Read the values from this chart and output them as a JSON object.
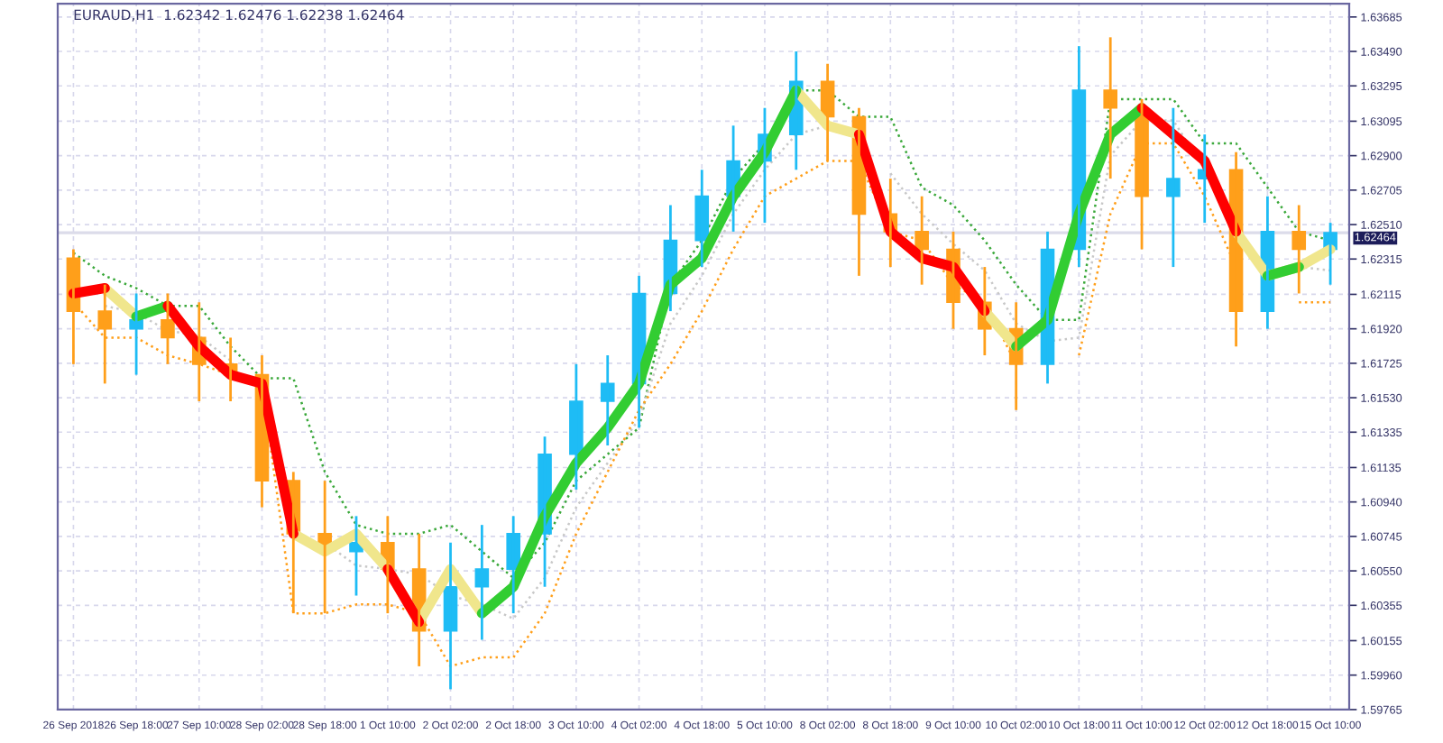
{
  "chart_data": {
    "type": "candlestick",
    "title": "EURAUD,H1  1.62342 1.62476 1.62238 1.62464",
    "categories": [
      "26 Sep 2018",
      null,
      "26 Sep 18:00",
      null,
      "27 Sep 10:00",
      null,
      "28 Sep 02:00",
      null,
      "28 Sep 18:00",
      null,
      "1 Oct 10:00",
      null,
      "2 Oct 02:00",
      null,
      "2 Oct 18:00",
      null,
      "3 Oct 10:00",
      null,
      "4 Oct 02:00",
      null,
      "4 Oct 18:00",
      null,
      "5 Oct 10:00",
      null,
      "8 Oct 02:00",
      null,
      "8 Oct 18:00",
      null,
      "9 Oct 10:00",
      null,
      "10 Oct 02:00",
      null,
      "10 Oct 18:00",
      null,
      "11 Oct 10:00",
      null,
      "12 Oct 02:00",
      null,
      "12 Oct 18:00",
      null,
      "15 Oct 10:00"
    ],
    "ohlc": [
      [
        1.6232,
        1.6237,
        1.6172,
        1.6202
      ],
      [
        1.6202,
        1.6217,
        1.6161,
        1.6192
      ],
      [
        1.6192,
        1.6212,
        1.6166,
        1.6197
      ],
      [
        1.6197,
        1.6212,
        1.6172,
        1.6187
      ],
      [
        1.6187,
        1.6207,
        1.6151,
        1.6172
      ],
      [
        1.6172,
        1.6187,
        1.6151,
        1.6166
      ],
      [
        1.6166,
        1.6177,
        1.6091,
        1.6106
      ],
      [
        1.6106,
        1.6111,
        1.6031,
        1.6076
      ],
      [
        1.6076,
        1.6106,
        1.6031,
        1.6066
      ],
      [
        1.6066,
        1.6086,
        1.6041,
        1.6071
      ],
      [
        1.6071,
        1.6086,
        1.6031,
        1.6056
      ],
      [
        1.6056,
        1.6076,
        1.6001,
        1.6021
      ],
      [
        1.6021,
        1.6071,
        1.5988,
        1.6046
      ],
      [
        1.6046,
        1.6081,
        1.6016,
        1.6056
      ],
      [
        1.6056,
        1.6086,
        1.6031,
        1.6076
      ],
      [
        1.6076,
        1.6131,
        1.6046,
        1.6121
      ],
      [
        1.6121,
        1.6172,
        1.6101,
        1.6151
      ],
      [
        1.6151,
        1.6177,
        1.6126,
        1.6161
      ],
      [
        1.6161,
        1.6222,
        1.6136,
        1.6212
      ],
      [
        1.6212,
        1.6262,
        1.6202,
        1.6242
      ],
      [
        1.6242,
        1.6282,
        1.6227,
        1.6267
      ],
      [
        1.6267,
        1.6307,
        1.6247,
        1.6287
      ],
      [
        1.6287,
        1.6317,
        1.6252,
        1.6302
      ],
      [
        1.6302,
        1.6349,
        1.6282,
        1.6332
      ],
      [
        1.6332,
        1.6342,
        1.6287,
        1.6312
      ],
      [
        1.6312,
        1.6317,
        1.6222,
        1.6257
      ],
      [
        1.6257,
        1.6277,
        1.6227,
        1.6247
      ],
      [
        1.6247,
        1.6267,
        1.6217,
        1.6237
      ],
      [
        1.6237,
        1.6247,
        1.6192,
        1.6207
      ],
      [
        1.6207,
        1.6227,
        1.6177,
        1.6192
      ],
      [
        1.6192,
        1.6207,
        1.6146,
        1.6172
      ],
      [
        1.6172,
        1.6247,
        1.6161,
        1.6237
      ],
      [
        1.6237,
        1.6352,
        1.6227,
        1.6327
      ],
      [
        1.6327,
        1.6357,
        1.6277,
        1.6317
      ],
      [
        1.6317,
        1.6322,
        1.6237,
        1.6267
      ],
      [
        1.6267,
        1.6317,
        1.6227,
        1.6277
      ],
      [
        1.6277,
        1.6302,
        1.6252,
        1.6282
      ],
      [
        1.6282,
        1.6292,
        1.6182,
        1.6202
      ],
      [
        1.6202,
        1.6267,
        1.6192,
        1.6247
      ],
      [
        1.6247,
        1.6262,
        1.6212,
        1.6237
      ],
      [
        1.6237,
        1.6252,
        1.6217,
        1.62464
      ]
    ],
    "colors": [
      "#ff9f1a",
      "#ff9f1a",
      "#1ebcf5",
      "#ff9f1a",
      "#ff9f1a",
      "#ff9f1a",
      "#ff9f1a",
      "#ff9f1a",
      "#ff9f1a",
      "#1ebcf5",
      "#ff9f1a",
      "#ff9f1a",
      "#1ebcf5",
      "#1ebcf5",
      "#1ebcf5",
      "#1ebcf5",
      "#1ebcf5",
      "#1ebcf5",
      "#1ebcf5",
      "#1ebcf5",
      "#1ebcf5",
      "#1ebcf5",
      "#1ebcf5",
      "#1ebcf5",
      "#ff9f1a",
      "#ff9f1a",
      "#ff9f1a",
      "#ff9f1a",
      "#ff9f1a",
      "#ff9f1a",
      "#ff9f1a",
      "#1ebcf5",
      "#1ebcf5",
      "#ff9f1a",
      "#ff9f1a",
      "#1ebcf5",
      "#1ebcf5",
      "#ff9f1a",
      "#1ebcf5",
      "#ff9f1a",
      "#1ebcf5"
    ],
    "series": [
      {
        "type": "line",
        "color": "#3aa83a",
        "line_style": "dotted",
        "values": [
          1.6235,
          1.6222,
          1.6215,
          1.6205,
          1.6205,
          1.6182,
          1.6164,
          1.6164,
          1.6111,
          1.6081,
          1.6076,
          1.6076,
          1.6081,
          1.6066,
          1.6051,
          1.6071,
          1.6106,
          1.6121,
          1.6136,
          1.6217,
          1.6242,
          1.6277,
          1.6297,
          1.6327,
          1.6327,
          1.6312,
          1.6312,
          1.6272,
          1.6262,
          1.6242,
          1.6217,
          1.6197,
          1.6197,
          1.6322,
          1.6322,
          1.6322,
          1.6297,
          1.6297,
          1.6272,
          1.6247,
          1.6242
        ]
      },
      {
        "type": "line",
        "color": "#c8c8c8",
        "line_style": "dotted",
        "values": [
          null,
          1.6205,
          1.6201,
          1.6191,
          1.6188,
          1.6174,
          null,
          null,
          1.6071,
          1.6058,
          1.6056,
          1.6053,
          1.6041,
          1.6036,
          1.6028,
          1.6051,
          1.6091,
          1.6116,
          1.6141,
          1.6195,
          1.6222,
          1.6257,
          1.6282,
          1.6302,
          1.6307,
          null,
          1.628,
          1.6257,
          1.624,
          1.6225,
          1.6195,
          1.6185,
          1.6187,
          1.629,
          1.631,
          1.631,
          1.6282,
          null,
          null,
          1.6227,
          1.6225
        ]
      },
      {
        "type": "line",
        "color": "#ff9f1a",
        "line_style": "dotted",
        "values": [
          1.6207,
          1.6187,
          1.6187,
          1.6177,
          1.6172,
          1.6166,
          1.6161,
          1.6031,
          1.6031,
          1.6036,
          1.6036,
          1.6031,
          1.6001,
          1.6006,
          1.6006,
          1.6031,
          1.6076,
          1.6111,
          1.6146,
          1.6172,
          1.6202,
          1.6237,
          1.6267,
          1.6277,
          1.6287,
          1.6287,
          1.6247,
          1.6242,
          1.6217,
          1.6207,
          1.6172,
          null,
          1.6177,
          1.6257,
          1.6297,
          1.6297,
          1.6267,
          1.6227,
          null,
          1.6207,
          1.6207
        ]
      },
      {
        "type": "line",
        "color": "#f0e68c",
        "line_style": "solid",
        "values": [
          null,
          1.6215,
          1.6199,
          null,
          null,
          null,
          null,
          1.6076,
          1.6066,
          1.6076,
          1.6056,
          1.6026,
          1.6056,
          1.6031,
          null,
          null,
          null,
          null,
          null,
          null,
          null,
          null,
          null,
          1.6327,
          1.6307,
          1.6302,
          null,
          null,
          null,
          1.6202,
          1.6182,
          null,
          null,
          null,
          null,
          null,
          null,
          1.6247,
          1.6222,
          1.6227,
          1.6237
        ]
      },
      {
        "type": "line",
        "color": "#32cd32",
        "line_style": "solid",
        "values": [
          null,
          null,
          1.6199,
          1.6205,
          null,
          null,
          null,
          null,
          null,
          null,
          null,
          null,
          null,
          1.6031,
          1.6046,
          1.6086,
          1.6116,
          1.6136,
          1.6161,
          1.6217,
          1.6232,
          1.6267,
          1.6292,
          1.6327,
          null,
          null,
          null,
          null,
          null,
          null,
          1.6182,
          1.6197,
          1.6257,
          1.6302,
          1.6317,
          null,
          null,
          null,
          1.6222,
          1.6227,
          null
        ]
      },
      {
        "type": "line",
        "color": "#ff0000",
        "line_style": "solid",
        "values": [
          1.6212,
          1.6215,
          null,
          1.6205,
          1.6182,
          1.6166,
          1.6161,
          1.6076,
          null,
          null,
          1.6056,
          1.6026,
          null,
          null,
          null,
          null,
          null,
          null,
          null,
          null,
          null,
          null,
          null,
          null,
          null,
          1.6302,
          1.6247,
          1.6232,
          1.6227,
          1.6202,
          null,
          null,
          null,
          null,
          1.6317,
          1.6302,
          1.6287,
          1.6247,
          null,
          null,
          null
        ]
      }
    ],
    "ylim": [
      1.59765,
      1.6376
    ],
    "yticks": [
      1.59765,
      {
        "value": 1.5996,
        "label": "1.59960"
      },
      1.60155,
      1.60355,
      {
        "value": 1.6055,
        "label": "1.60550"
      },
      1.60745,
      {
        "value": 1.6094,
        "label": "1.60940"
      },
      1.61135,
      1.61335,
      {
        "value": 1.6153,
        "label": "1.61530"
      },
      1.61725,
      {
        "value": 1.6192,
        "label": "1.61920"
      },
      1.62115,
      1.62315,
      {
        "value": 1.6251,
        "label": "1.62510"
      },
      1.62705,
      {
        "value": 1.629,
        "label": "1.62900"
      },
      1.63095,
      1.63295,
      {
        "value": 1.6349,
        "label": "1.63490"
      },
      1.63685
    ],
    "grid": true,
    "ref_lines": [
      {
        "axis": "y",
        "value": 1.62464,
        "label": "1.62464",
        "color": "#dcdcea"
      }
    ]
  }
}
